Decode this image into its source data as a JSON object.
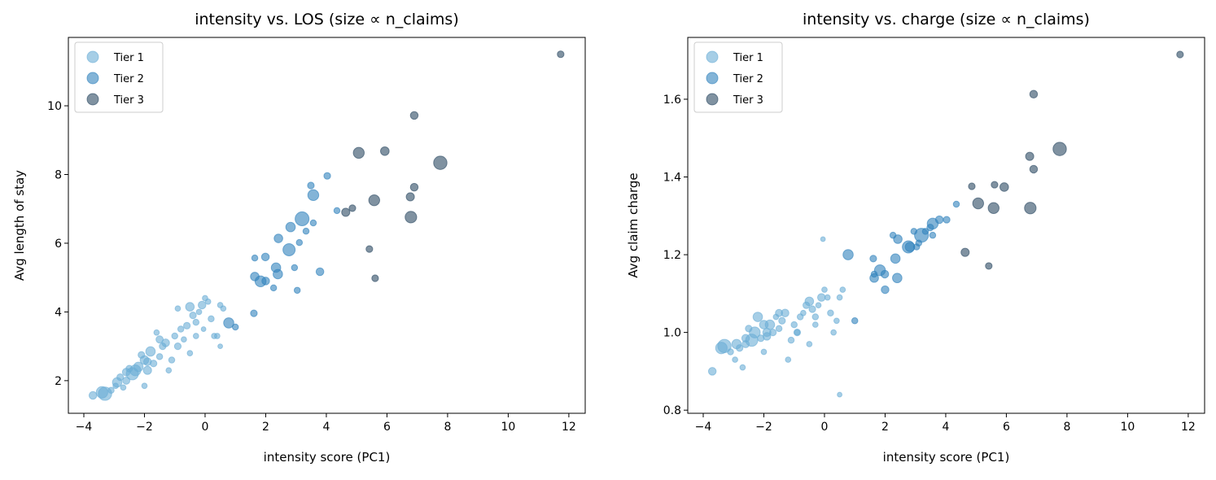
{
  "chart_data": [
    {
      "type": "scatter",
      "title": "intensity vs. LOS (size ∝ n_claims)",
      "xlabel": "intensity score (PC1)",
      "ylabel": "Avg length of stay",
      "xlim": [
        -4.51,
        12.54
      ],
      "ylim": [
        1.05,
        11.99
      ],
      "xticks": [
        -4,
        -2,
        0,
        2,
        4,
        6,
        8,
        10,
        12
      ],
      "xtick_labels": [
        "−4",
        "−2",
        "0",
        "2",
        "4",
        "6",
        "8",
        "10",
        "12"
      ],
      "yticks": [
        2,
        4,
        6,
        8,
        10
      ],
      "ytick_labels": [
        "2",
        "4",
        "6",
        "8",
        "10"
      ],
      "grid": false,
      "legend_position": "top-left",
      "y_field": "los"
    },
    {
      "type": "scatter",
      "title": "intensity vs. charge (size ∝ n_claims)",
      "xlabel": "intensity score (PC1)",
      "ylabel": "Avg claim charge",
      "xlim": [
        -4.51,
        12.54
      ],
      "ylim": [
        0.792,
        1.759
      ],
      "xticks": [
        -4,
        -2,
        0,
        2,
        4,
        6,
        8,
        10,
        12
      ],
      "xtick_labels": [
        "−4",
        "−2",
        "0",
        "2",
        "4",
        "6",
        "8",
        "10",
        "12"
      ],
      "yticks": [
        0.8,
        1.0,
        1.2,
        1.4,
        1.6
      ],
      "ytick_labels": [
        "0.8",
        "1.0",
        "1.2",
        "1.4",
        "1.6"
      ],
      "grid": false,
      "legend_position": "top-left",
      "y_field": "charge"
    }
  ],
  "series": [
    {
      "name": "Tier 1",
      "color": "#6baed6",
      "fields": [
        "x",
        "los",
        "charge",
        "n_claims"
      ],
      "points": [
        [
          -3.7,
          1.57,
          0.9,
          40
        ],
        [
          -3.3,
          1.62,
          0.965,
          120
        ],
        [
          -3.4,
          1.66,
          0.96,
          90
        ],
        [
          -3.1,
          1.72,
          0.95,
          25
        ],
        [
          -2.9,
          1.95,
          0.97,
          60
        ],
        [
          -2.95,
          1.85,
          0.93,
          20
        ],
        [
          -2.7,
          1.8,
          0.91,
          20
        ],
        [
          -2.6,
          2.25,
          0.985,
          40
        ],
        [
          -2.4,
          2.2,
          0.98,
          100
        ],
        [
          -2.3,
          2.3,
          1.0,
          80
        ],
        [
          -2.2,
          2.4,
          1.04,
          60
        ],
        [
          -2.5,
          2.35,
          1.01,
          30
        ],
        [
          -2.0,
          2.6,
          1.02,
          50
        ],
        [
          -1.9,
          2.55,
          0.99,
          40
        ],
        [
          -1.8,
          2.85,
          1.02,
          60
        ],
        [
          -2.1,
          2.75,
          0.985,
          30
        ],
        [
          -2.0,
          1.85,
          0.95,
          20
        ],
        [
          -1.7,
          2.5,
          1.0,
          30
        ],
        [
          -1.5,
          2.7,
          1.01,
          25
        ],
        [
          -1.4,
          3.0,
          1.03,
          30
        ],
        [
          -1.3,
          3.1,
          1.05,
          40
        ],
        [
          -1.2,
          2.3,
          0.93,
          20
        ],
        [
          -1.0,
          3.3,
          1.02,
          25
        ],
        [
          -0.9,
          3.0,
          1.0,
          30
        ],
        [
          -0.8,
          3.5,
          1.04,
          25
        ],
        [
          -0.7,
          3.2,
          1.05,
          20
        ],
        [
          -0.6,
          3.6,
          1.07,
          30
        ],
        [
          -0.5,
          4.15,
          1.08,
          50
        ],
        [
          -0.4,
          3.9,
          1.06,
          30
        ],
        [
          -0.3,
          3.7,
          1.04,
          25
        ],
        [
          -0.2,
          4.0,
          1.07,
          20
        ],
        [
          -0.1,
          4.2,
          1.09,
          40
        ],
        [
          0.0,
          4.4,
          1.11,
          20
        ],
        [
          0.1,
          4.3,
          1.09,
          20
        ],
        [
          0.2,
          3.8,
          1.05,
          25
        ],
        [
          0.3,
          3.3,
          1.0,
          20
        ],
        [
          0.4,
          3.3,
          1.03,
          20
        ],
        [
          0.5,
          4.2,
          1.09,
          20
        ],
        [
          0.6,
          4.1,
          1.11,
          20
        ],
        [
          -0.5,
          2.8,
          0.97,
          20
        ],
        [
          -1.1,
          2.6,
          0.98,
          25
        ],
        [
          -1.6,
          3.4,
          1.04,
          20
        ],
        [
          -0.05,
          3.5,
          1.24,
          15
        ],
        [
          0.5,
          3.0,
          0.84,
          15
        ],
        [
          -0.9,
          4.1,
          1.0,
          20
        ],
        [
          -2.8,
          2.1,
          0.96,
          30
        ],
        [
          -1.5,
          3.2,
          1.05,
          35
        ],
        [
          -0.3,
          3.3,
          1.02,
          20
        ],
        [
          -1.9,
          2.3,
          1.0,
          45
        ],
        [
          -2.6,
          2.0,
          0.97,
          35
        ]
      ]
    },
    {
      "name": "Tier 2",
      "color": "#3182bd",
      "fields": [
        "x",
        "los",
        "charge",
        "n_claims"
      ],
      "points": [
        [
          4.03,
          7.96,
          1.29,
          30
        ],
        [
          3.49,
          7.68,
          1.27,
          30
        ],
        [
          3.57,
          7.4,
          1.28,
          80
        ],
        [
          4.35,
          6.95,
          1.33,
          25
        ],
        [
          3.2,
          6.71,
          1.25,
          130
        ],
        [
          3.57,
          6.59,
          1.25,
          25
        ],
        [
          2.82,
          6.47,
          1.22,
          60
        ],
        [
          3.33,
          6.35,
          1.26,
          25
        ],
        [
          2.42,
          6.14,
          1.24,
          50
        ],
        [
          3.11,
          6.02,
          1.23,
          25
        ],
        [
          2.77,
          5.81,
          1.22,
          100
        ],
        [
          1.64,
          5.57,
          1.15,
          25
        ],
        [
          1.99,
          5.6,
          1.15,
          40
        ],
        [
          2.34,
          5.29,
          1.19,
          60
        ],
        [
          2.95,
          5.29,
          1.26,
          25
        ],
        [
          3.79,
          5.17,
          1.29,
          40
        ],
        [
          1.64,
          5.03,
          1.14,
          50
        ],
        [
          1.83,
          4.89,
          1.16,
          80
        ],
        [
          2.26,
          4.7,
          1.25,
          25
        ],
        [
          3.04,
          4.63,
          1.22,
          25
        ],
        [
          1.61,
          3.96,
          1.19,
          30
        ],
        [
          0.78,
          3.68,
          1.2,
          70
        ],
        [
          1.0,
          3.56,
          1.03,
          25
        ],
        [
          2.0,
          4.9,
          1.11,
          40
        ],
        [
          2.4,
          5.1,
          1.14,
          60
        ]
      ]
    },
    {
      "name": "Tier 3",
      "color": "#2c4a63",
      "fields": [
        "x",
        "los",
        "charge",
        "n_claims"
      ],
      "points": [
        [
          11.73,
          11.5,
          1.715,
          30
        ],
        [
          6.9,
          9.72,
          1.613,
          40
        ],
        [
          5.07,
          8.63,
          1.332,
          80
        ],
        [
          5.93,
          8.68,
          1.374,
          50
        ],
        [
          7.76,
          8.34,
          1.472,
          120
        ],
        [
          6.9,
          7.63,
          1.42,
          40
        ],
        [
          6.77,
          7.35,
          1.453,
          45
        ],
        [
          5.58,
          7.25,
          1.32,
          80
        ],
        [
          6.79,
          6.76,
          1.32,
          90
        ],
        [
          4.64,
          6.9,
          1.206,
          45
        ],
        [
          4.86,
          7.02,
          1.376,
          30
        ],
        [
          5.42,
          5.83,
          1.171,
          30
        ],
        [
          5.61,
          4.98,
          1.38,
          30
        ]
      ]
    }
  ]
}
